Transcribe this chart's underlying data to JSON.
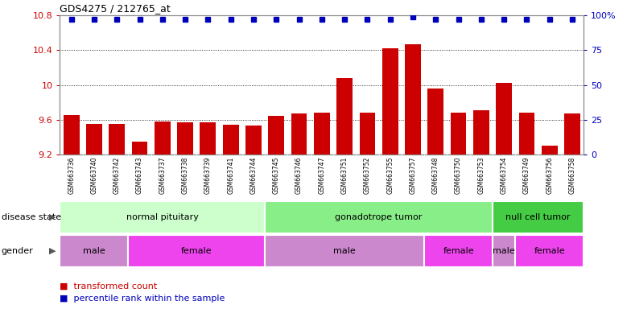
{
  "title": "GDS4275 / 212765_at",
  "samples": [
    "GSM663736",
    "GSM663740",
    "GSM663742",
    "GSM663743",
    "GSM663737",
    "GSM663738",
    "GSM663739",
    "GSM663741",
    "GSM663744",
    "GSM663745",
    "GSM663746",
    "GSM663747",
    "GSM663751",
    "GSM663752",
    "GSM663755",
    "GSM663757",
    "GSM663748",
    "GSM663750",
    "GSM663753",
    "GSM663754",
    "GSM663749",
    "GSM663756",
    "GSM663758"
  ],
  "bar_values": [
    9.65,
    9.55,
    9.55,
    9.35,
    9.58,
    9.57,
    9.57,
    9.54,
    9.53,
    9.64,
    9.67,
    9.68,
    10.08,
    9.68,
    10.42,
    10.47,
    9.96,
    9.68,
    9.71,
    10.02,
    9.68,
    9.3,
    9.67
  ],
  "percentile_pcts": [
    97,
    97,
    97,
    97,
    97,
    97,
    97,
    97,
    97,
    97,
    97,
    97,
    97,
    97,
    97,
    99,
    97,
    97,
    97,
    97,
    97,
    97,
    97
  ],
  "bar_color": "#cc0000",
  "percentile_color": "#0000bb",
  "ylim_left": [
    9.2,
    10.8
  ],
  "ylim_right": [
    0,
    100
  ],
  "yticks_left": [
    9.2,
    9.6,
    10.0,
    10.4,
    10.8
  ],
  "ytick_labels_left": [
    "9.2",
    "9.6",
    "10",
    "10.4",
    "10.8"
  ],
  "yticks_right": [
    0,
    25,
    50,
    75,
    100
  ],
  "ytick_labels_right": [
    "0",
    "25",
    "50",
    "75",
    "100%"
  ],
  "disease_state_groups": [
    {
      "label": "normal pituitary",
      "start": 0,
      "end": 9,
      "color": "#ccffcc"
    },
    {
      "label": "gonadotrope tumor",
      "start": 9,
      "end": 19,
      "color": "#88ee88"
    },
    {
      "label": "null cell tumor",
      "start": 19,
      "end": 23,
      "color": "#44cc44"
    }
  ],
  "gender_groups": [
    {
      "label": "male",
      "start": 0,
      "end": 3,
      "color": "#cc88cc"
    },
    {
      "label": "female",
      "start": 3,
      "end": 9,
      "color": "#ee44ee"
    },
    {
      "label": "male",
      "start": 9,
      "end": 16,
      "color": "#cc88cc"
    },
    {
      "label": "female",
      "start": 16,
      "end": 19,
      "color": "#ee44ee"
    },
    {
      "label": "male",
      "start": 19,
      "end": 20,
      "color": "#cc88cc"
    },
    {
      "label": "female",
      "start": 20,
      "end": 23,
      "color": "#ee44ee"
    }
  ],
  "legend_items": [
    {
      "label": "transformed count",
      "color": "#cc0000"
    },
    {
      "label": "percentile rank within the sample",
      "color": "#0000bb"
    }
  ],
  "row_label_disease": "disease state",
  "row_label_gender": "gender",
  "xtick_bg_color": "#cccccc",
  "spine_color": "#888888"
}
